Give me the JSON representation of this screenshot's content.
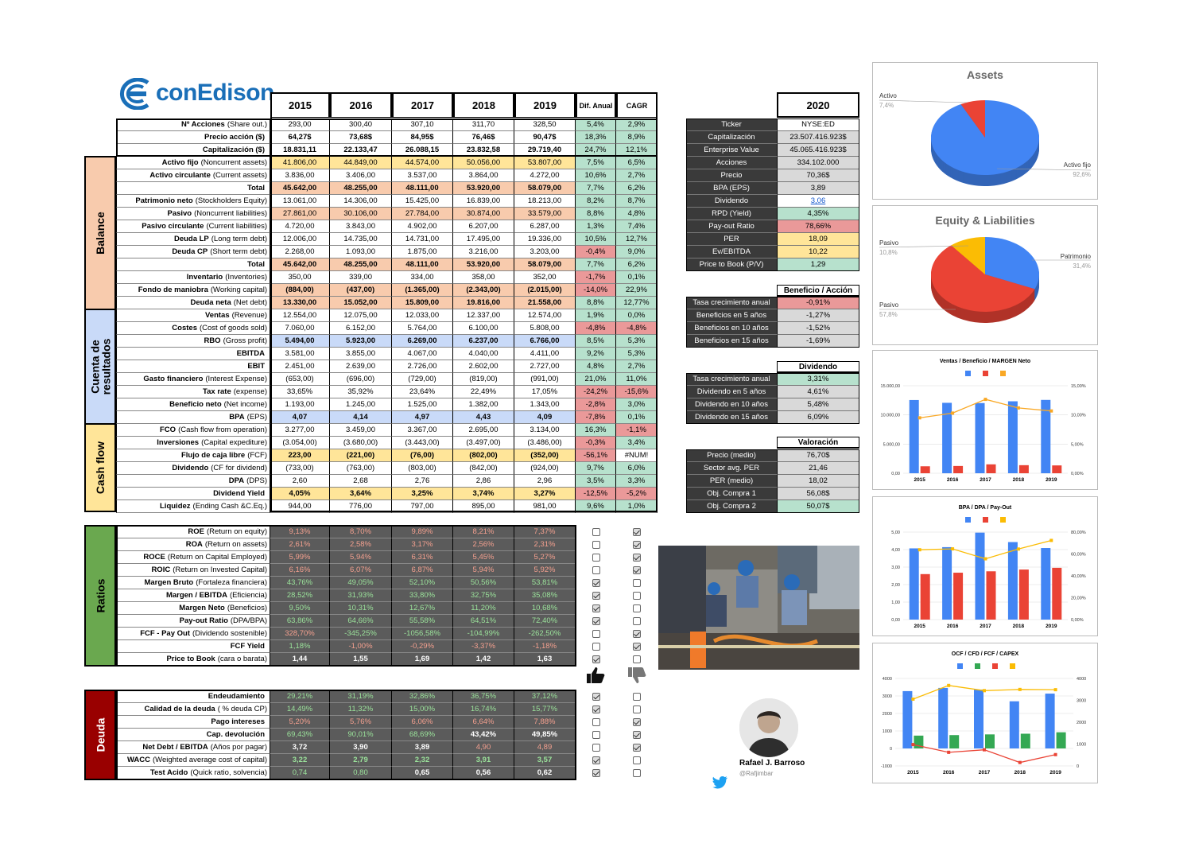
{
  "company": "conEdison",
  "years": [
    "2015",
    "2016",
    "2017",
    "2018",
    "2019"
  ],
  "col_dif": "Dif. Anual",
  "col_cagr": "CAGR",
  "rows_top": [
    {
      "b": "Nº Acciones",
      "n": "(Share out.)",
      "v": [
        "293,00",
        "300,40",
        "307,10",
        "311,70",
        "328,50"
      ],
      "d": "5,4%",
      "c": "2,9%"
    },
    {
      "b": "Precio acción ($)",
      "n": "",
      "v": [
        "64,27$",
        "73,68$",
        "84,95$",
        "76,46$",
        "90,47$"
      ],
      "d": "18,3%",
      "c": "8,9%"
    },
    {
      "b": "Capitalización ($)",
      "n": "",
      "v": [
        "18.831,11",
        "22.133,47",
        "26.088,15",
        "23.832,58",
        "29.719,40"
      ],
      "d": "24,7%",
      "c": "12,1%"
    }
  ],
  "balance": {
    "title": "Balance",
    "rows": [
      {
        "b": "Activo fijo",
        "n": "(Noncurrent assets)",
        "v": [
          "41.806,00",
          "44.849,00",
          "44.574,00",
          "50.056,00",
          "53.807,00"
        ],
        "d": "7,5%",
        "c": "6,5%"
      },
      {
        "b": "Activo circulante",
        "n": "(Current assets)",
        "v": [
          "3.836,00",
          "3.406,00",
          "3.537,00",
          "3.864,00",
          "4.272,00"
        ],
        "d": "10,6%",
        "c": "2,7%"
      },
      {
        "b": "Total",
        "n": "",
        "v": [
          "45.642,00",
          "48.255,00",
          "48.111,00",
          "53.920,00",
          "58.079,00"
        ],
        "d": "7,7%",
        "c": "6,2%"
      },
      {
        "b": "Patrimonio neto",
        "n": "(Stockholders Equity)",
        "v": [
          "13.061,00",
          "14.306,00",
          "15.425,00",
          "16.839,00",
          "18.213,00"
        ],
        "d": "8,2%",
        "c": "8,7%"
      },
      {
        "b": "Pasivo",
        "n": "(Noncurrent liabilities)",
        "v": [
          "27.861,00",
          "30.106,00",
          "27.784,00",
          "30.874,00",
          "33.579,00"
        ],
        "d": "8,8%",
        "c": "4,8%"
      },
      {
        "b": "Pasivo circulante",
        "n": "(Current liabilities)",
        "v": [
          "4.720,00",
          "3.843,00",
          "4.902,00",
          "6.207,00",
          "6.287,00"
        ],
        "d": "1,3%",
        "c": "7,4%"
      },
      {
        "b": "Deuda LP",
        "n": "(Long term debt)",
        "v": [
          "12.006,00",
          "14.735,00",
          "14.731,00",
          "17.495,00",
          "19.336,00"
        ],
        "d": "10,5%",
        "c": "12,7%"
      },
      {
        "b": "Deuda CP",
        "n": "(Short term debt)",
        "v": [
          "2.268,00",
          "1.093,00",
          "1.875,00",
          "3.216,00",
          "3.203,00"
        ],
        "d": "-0,4%",
        "c": "9,0%"
      },
      {
        "b": "Total",
        "n": "",
        "v": [
          "45.642,00",
          "48.255,00",
          "48.111,00",
          "53.920,00",
          "58.079,00"
        ],
        "d": "7,7%",
        "c": "6,2%"
      },
      {
        "b": "Inventario",
        "n": "(Inventories)",
        "v": [
          "350,00",
          "339,00",
          "334,00",
          "358,00",
          "352,00"
        ],
        "d": "-1,7%",
        "c": "0,1%"
      },
      {
        "b": "Fondo de maniobra",
        "n": "(Working capital)",
        "v": [
          "(884,00)",
          "(437,00)",
          "(1.365,00)",
          "(2.343,00)",
          "(2.015,00)"
        ],
        "d": "-14,0%",
        "c": "22,9%"
      },
      {
        "b": "Deuda neta",
        "n": "(Net debt)",
        "v": [
          "13.330,00",
          "15.052,00",
          "15.809,00",
          "19.816,00",
          "21.558,00"
        ],
        "d": "8,8%",
        "c": "12,77%"
      }
    ]
  },
  "resultados": {
    "title": "Cuenta de resultados",
    "rows": [
      {
        "b": "Ventas",
        "n": "(Revenue)",
        "v": [
          "12.554,00",
          "12.075,00",
          "12.033,00",
          "12.337,00",
          "12.574,00"
        ],
        "d": "1,9%",
        "c": "0,0%"
      },
      {
        "b": "Costes",
        "n": "(Cost of goods sold)",
        "v": [
          "7.060,00",
          "6.152,00",
          "5.764,00",
          "6.100,00",
          "5.808,00"
        ],
        "d": "-4,8%",
        "c": "-4,8%"
      },
      {
        "b": "RBO",
        "n": "(Gross profit)",
        "v": [
          "5.494,00",
          "5.923,00",
          "6.269,00",
          "6.237,00",
          "6.766,00"
        ],
        "d": "8,5%",
        "c": "5,3%"
      },
      {
        "b": "EBITDA",
        "n": "",
        "v": [
          "3.581,00",
          "3.855,00",
          "4.067,00",
          "4.040,00",
          "4.411,00"
        ],
        "d": "9,2%",
        "c": "5,3%"
      },
      {
        "b": "EBIT",
        "n": "",
        "v": [
          "2.451,00",
          "2.639,00",
          "2.726,00",
          "2.602,00",
          "2.727,00"
        ],
        "d": "4,8%",
        "c": "2,7%"
      },
      {
        "b": "Gasto financiero",
        "n": " (Interest Expense)",
        "v": [
          "(653,00)",
          "(696,00)",
          "(729,00)",
          "(819,00)",
          "(991,00)"
        ],
        "d": "21,0%",
        "c": "11,0%"
      },
      {
        "b": "Tax rate",
        "n": "(expense)",
        "v": [
          "33,65%",
          "35,92%",
          "23,64%",
          "22,49%",
          "17,05%"
        ],
        "d": "-24,2%",
        "c": "-15,6%"
      },
      {
        "b": "Beneficio neto",
        "n": "(Net income)",
        "v": [
          "1.193,00",
          "1.245,00",
          "1.525,00",
          "1.382,00",
          "1.343,00"
        ],
        "d": "-2,8%",
        "c": "3,0%"
      },
      {
        "b": "BPA",
        "n": "(EPS)",
        "v": [
          "4,07",
          "4,14",
          "4,97",
          "4,43",
          "4,09"
        ],
        "d": "-7,8%",
        "c": "0,1%"
      }
    ]
  },
  "cashflow": {
    "title": "Cash flow",
    "rows": [
      {
        "b": "FCO",
        "n": "(Cash flow from operation)",
        "v": [
          "3.277,00",
          "3.459,00",
          "3.367,00",
          "2.695,00",
          "3.134,00"
        ],
        "d": "16,3%",
        "c": "-1,1%"
      },
      {
        "b": "Inversiones",
        "n": "(Capital expediture)",
        "v": [
          "(3.054,00)",
          "(3.680,00)",
          "(3.443,00)",
          "(3.497,00)",
          "(3.486,00)"
        ],
        "d": "-0,3%",
        "c": "3,4%"
      },
      {
        "b": "Flujo de caja libre",
        "n": "(FCF)",
        "v": [
          "223,00",
          "(221,00)",
          "(76,00)",
          "(802,00)",
          "(352,00)"
        ],
        "d": "-56,1%",
        "c": "#NUM!"
      },
      {
        "b": "Dividendo",
        "n": "(CF for dividend)",
        "v": [
          "(733,00)",
          "(763,00)",
          "(803,00)",
          "(842,00)",
          "(924,00)"
        ],
        "d": "9,7%",
        "c": "6,0%"
      },
      {
        "b": "DPA",
        "n": "(DPS)",
        "v": [
          "2,60",
          "2,68",
          "2,76",
          "2,86",
          "2,96"
        ],
        "d": "3,5%",
        "c": "3,3%"
      },
      {
        "b": "Dividend Yield",
        "n": "",
        "v": [
          "4,05%",
          "3,64%",
          "3,25%",
          "3,74%",
          "3,27%"
        ],
        "d": "-12,5%",
        "c": "-5,2%"
      },
      {
        "b": "Liquidez",
        "n": "(Ending Cash &C.Eq.)",
        "v": [
          "944,00",
          "776,00",
          "797,00",
          "895,00",
          "981,00"
        ],
        "d": "9,6%",
        "c": "1,0%"
      }
    ]
  },
  "ratios": {
    "title": "Ratios",
    "rows": [
      {
        "b": "ROE",
        "n": "(Return on equity)",
        "v": [
          "9,13%",
          "8,70%",
          "9,89%",
          "8,21%",
          "7,37%"
        ],
        "up": false,
        "down": true
      },
      {
        "b": "ROA",
        "n": "(Return on assets)",
        "v": [
          "2,61%",
          "2,58%",
          "3,17%",
          "2,56%",
          "2,31%"
        ],
        "up": false,
        "down": true
      },
      {
        "b": "ROCE",
        "n": "(Return on Capital Employed)",
        "v": [
          "5,99%",
          "5,94%",
          "6,31%",
          "5,45%",
          "5,27%"
        ],
        "up": false,
        "down": true
      },
      {
        "b": "ROIC",
        "n": "(Return on Invested Capital)",
        "v": [
          "6,16%",
          "6,07%",
          "6,87%",
          "5,94%",
          "5,92%"
        ],
        "up": false,
        "down": true
      },
      {
        "b": "Margen Bruto",
        "n": "(Fortaleza financiera)",
        "v": [
          "43,76%",
          "49,05%",
          "52,10%",
          "50,56%",
          "53,81%"
        ],
        "up": true,
        "down": false
      },
      {
        "b": "Margen / EBITDA",
        "n": "(Eficiencia)",
        "v": [
          "28,52%",
          "31,93%",
          "33,80%",
          "32,75%",
          "35,08%"
        ],
        "up": true,
        "down": false
      },
      {
        "b": "Margen Neto",
        "n": "(Beneficios)",
        "v": [
          "9,50%",
          "10,31%",
          "12,67%",
          "11,20%",
          "10,68%"
        ],
        "up": true,
        "down": false
      },
      {
        "b": "Pay-out Ratio",
        "n": "(DPA/BPA)",
        "v": [
          "63,86%",
          "64,66%",
          "55,58%",
          "64,51%",
          "72,40%"
        ],
        "up": true,
        "down": false
      },
      {
        "b": "FCF - Pay Out",
        "n": "(Dividendo sostenible)",
        "v": [
          "328,70%",
          "-345,25%",
          "-1056,58%",
          "-104,99%",
          "-262,50%"
        ],
        "up": false,
        "down": true
      },
      {
        "b": "FCF Yield",
        "n": "",
        "v": [
          "1,18%",
          "-1,00%",
          "-0,29%",
          "-3,37%",
          "-1,18%"
        ],
        "up": false,
        "down": true
      },
      {
        "b": "Price to Book",
        "n": "(cara o barata)",
        "v": [
          "1,44",
          "1,55",
          "1,69",
          "1,42",
          "1,63"
        ],
        "up": true,
        "down": false
      }
    ]
  },
  "deuda": {
    "title": "Deuda",
    "rows": [
      {
        "b": "Endeudamiento",
        "n": "",
        "v": [
          "29,21%",
          "31,19%",
          "32,86%",
          "36,75%",
          "37,12%"
        ],
        "up": true,
        "down": false
      },
      {
        "b": "Calidad de la deuda",
        "n": "( % deuda CP)",
        "v": [
          "14,49%",
          "11,32%",
          "15,00%",
          "16,74%",
          "15,77%"
        ],
        "up": true,
        "down": false
      },
      {
        "b": "Pago intereses",
        "n": "",
        "v": [
          "5,20%",
          "5,76%",
          "6,06%",
          "6,64%",
          "7,88%"
        ],
        "up": false,
        "down": true
      },
      {
        "b": "Cap. devolución",
        "n": "",
        "v": [
          "69,43%",
          "90,01%",
          "68,69%",
          "43,42%",
          "49,85%"
        ],
        "up": false,
        "down": true
      },
      {
        "b": "Net Debt / EBITDA",
        "n": "(Años por pagar)",
        "v": [
          "3,72",
          "3,90",
          "3,89",
          "4,90",
          "4,89"
        ],
        "up": false,
        "down": true
      },
      {
        "b": "WACC",
        "n": "(Weighted average cost of capital)",
        "v": [
          "3,22",
          "2,79",
          "2,32",
          "3,91",
          "3,57"
        ],
        "up": true,
        "down": false
      },
      {
        "b": "Test Acido",
        "n": "(Quick ratio, solvencia)",
        "v": [
          "0,74",
          "0,80",
          "0,65",
          "0,56",
          "0,62"
        ],
        "up": true,
        "down": false
      }
    ]
  },
  "info": {
    "year": "2020",
    "rows": [
      {
        "l": "Ticker",
        "v": "NYSE:ED"
      },
      {
        "l": "Capitalización",
        "v": "23.507.416.923$"
      },
      {
        "l": "Enterprise Value",
        "v": "45.065.416.923$"
      },
      {
        "l": "Acciones",
        "v": "334.102.000"
      },
      {
        "l": "Precio",
        "v": "70,36$"
      },
      {
        "l": "BPA (EPS)",
        "v": "3,89"
      },
      {
        "l": "Dividendo",
        "v": "3,06"
      },
      {
        "l": "RPD (Yield)",
        "v": "4,35%"
      },
      {
        "l": "Pay-out Ratio",
        "v": "78,66%"
      },
      {
        "l": "PER",
        "v": "18,09"
      },
      {
        "l": "Ev/EBITDA",
        "v": "10,22"
      },
      {
        "l": "Price to Book (P/V)",
        "v": "1,29"
      }
    ]
  },
  "beneficio": {
    "title": "Beneficio / Acción",
    "rows": [
      {
        "l": "Tasa crecimiento anual",
        "v": "-0,91%"
      },
      {
        "l": "Beneficios en 5 años",
        "v": "-1,27%"
      },
      {
        "l": "Beneficios en 10 años",
        "v": "-1,52%"
      },
      {
        "l": "Beneficios en 15 años",
        "v": "-1,69%"
      }
    ]
  },
  "dividendo": {
    "title": "Dividendo",
    "rows": [
      {
        "l": "Tasa crecimiento anual",
        "v": "3,31%"
      },
      {
        "l": "Dividendo en 5 años",
        "v": "4,61%"
      },
      {
        "l": "Dividendo en 10 años",
        "v": "5,48%"
      },
      {
        "l": "Dividendo en 15 años",
        "v": "6,09%"
      }
    ]
  },
  "valoracion": {
    "title": "Valoración",
    "rows": [
      {
        "l": "Precio (medio)",
        "v": "76,70$"
      },
      {
        "l": "Sector avg. PER",
        "v": "21,46"
      },
      {
        "l": "PER (medio)",
        "v": "18,02"
      },
      {
        "l": "Obj. Compra 1",
        "v": "56,08$"
      },
      {
        "l": "Obj. Compra 2",
        "v": "50,07$"
      }
    ]
  },
  "author": {
    "name": "Rafael J. Barroso",
    "handle": "@Rafjimbar"
  },
  "colors": {
    "blue": "#4285f4",
    "red": "#ea4335",
    "yellow": "#fbbc04",
    "green": "#34a853",
    "peach": "#f8cbad",
    "lightblue": "#c9daf8",
    "lightyellow": "#ffe599",
    "cellgreen": "#b7e1cd",
    "cellred": "#ea9999",
    "dark": "#5b5b5b"
  },
  "chart_data": [
    {
      "type": "pie",
      "title": "Assets",
      "labels": [
        "Activo fijo",
        "Activo"
      ],
      "values": [
        92.6,
        7.4
      ],
      "value_labels": [
        "92,6%",
        "7,4%"
      ]
    },
    {
      "type": "pie",
      "title": "Equity & Liabilities",
      "labels": [
        "Pasivo",
        "Patrimonio",
        "Pasivo"
      ],
      "values": [
        10.8,
        31.4,
        57.8
      ],
      "value_labels": [
        "10,8%",
        "31,4%",
        "57,8%"
      ]
    },
    {
      "type": "bar",
      "title": "Ventas / Beneficio / MARGEN Neto",
      "categories": [
        "2015",
        "2016",
        "2017",
        "2018",
        "2019"
      ],
      "series": [
        {
          "values": [
            12554,
            12075,
            12033,
            12337,
            12574
          ]
        },
        {
          "values": [
            1193,
            1245,
            1525,
            1382,
            1343
          ]
        },
        {
          "type": "line",
          "axis": "right",
          "values": [
            9.5,
            10.31,
            12.67,
            11.2,
            10.68
          ]
        }
      ],
      "yticks": [
        "0,00",
        "5.000,00",
        "10.000,00",
        "15.000,00"
      ],
      "ylim": [
        0,
        15000
      ],
      "y2ticks": [
        "0,00%",
        "5,00%",
        "10,00%",
        "15,00%"
      ],
      "y2lim": [
        0,
        15
      ]
    },
    {
      "type": "bar",
      "title": "BPA / DPA / Pay-Out",
      "categories": [
        "2015",
        "2016",
        "2017",
        "2018",
        "2019"
      ],
      "series": [
        {
          "values": [
            4.07,
            4.14,
            4.97,
            4.43,
            4.09
          ]
        },
        {
          "values": [
            2.6,
            2.68,
            2.76,
            2.86,
            2.96
          ]
        },
        {
          "type": "line",
          "axis": "right",
          "values": [
            63.86,
            64.66,
            55.58,
            64.51,
            72.4
          ]
        }
      ],
      "yticks": [
        "0,00",
        "1,00",
        "2,00",
        "3,00",
        "4,00",
        "5,00"
      ],
      "ylim": [
        0,
        5
      ],
      "y2ticks": [
        "0,00%",
        "20,00%",
        "40,00%",
        "60,00%",
        "80,00%"
      ],
      "y2lim": [
        0,
        80
      ]
    },
    {
      "type": "bar",
      "title": "OCF / CFD / FCF / CAPEX",
      "categories": [
        "2015",
        "2016",
        "2017",
        "2018",
        "2019"
      ],
      "series": [
        {
          "values": [
            3277,
            3459,
            3367,
            2695,
            3134
          ]
        },
        {
          "values": [
            733,
            763,
            803,
            842,
            924
          ]
        },
        {
          "type": "line",
          "values": [
            223,
            -221,
            -76,
            -802,
            -352
          ]
        },
        {
          "type": "line",
          "axis": "right",
          "values": [
            3054,
            3680,
            3443,
            3497,
            3486
          ]
        }
      ],
      "yticks": [
        "-1000",
        "0",
        "1000",
        "2000",
        "3000",
        "4000"
      ],
      "ylim": [
        -1000,
        4000
      ],
      "y2ticks": [
        "0",
        "1000",
        "2000",
        "3000",
        "4000"
      ],
      "y2lim": [
        0,
        4000
      ]
    }
  ]
}
